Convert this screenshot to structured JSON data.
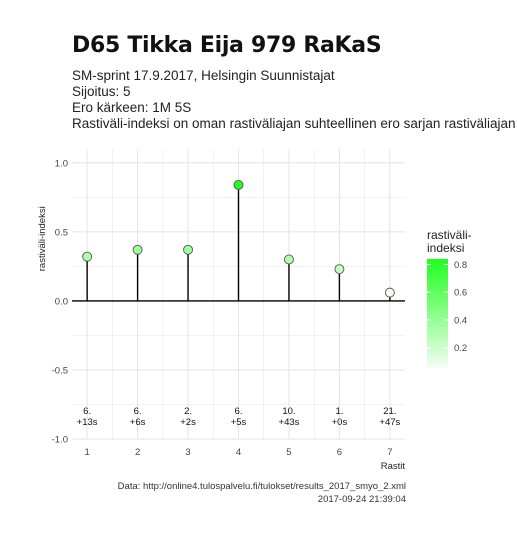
{
  "header": {
    "title": "D65 Tikka Eija 979 RaKaS",
    "subtitle_lines": [
      "SM-sprint 17.9.2017, Helsingin Suunnistajat",
      "Sijoitus: 5",
      "Ero kärkeen: 1M 5S",
      "Rastiväli-indeksi on oman rastiväliajan suhteellinen ero sarjan rastiväliajan kes"
    ]
  },
  "caption": {
    "line1": "Data: http://online4.tulospalvelu.fi/tulokset/results_2017_smyo_2.xml",
    "line2": "2017-09-24 21:39:04"
  },
  "chart_data": {
    "type": "lollipop",
    "xlabel": "Rastit",
    "ylabel": "rastiväli-indeksi",
    "x": [
      1,
      2,
      3,
      4,
      5,
      6,
      7
    ],
    "values": [
      0.32,
      0.37,
      0.37,
      0.84,
      0.3,
      0.23,
      0.06
    ],
    "ylim": [
      -1.0,
      1.1
    ],
    "xlim": [
      0.7,
      7.3
    ],
    "yticks": [
      -1.0,
      -0.5,
      0.0,
      0.5,
      1.0
    ],
    "ytick_labels": [
      "-1.0",
      "-0.5",
      "0.0",
      "0.5",
      "1.0"
    ],
    "xticks": [
      1,
      2,
      3,
      4,
      5,
      6,
      7
    ],
    "point_labels": [
      {
        "place": "6.",
        "diff": "+13s"
      },
      {
        "place": "6.",
        "diff": "+6s"
      },
      {
        "place": "2.",
        "diff": "+2s"
      },
      {
        "place": "6.",
        "diff": "+5s"
      },
      {
        "place": "10.",
        "diff": "+43s"
      },
      {
        "place": "1.",
        "diff": "+0s"
      },
      {
        "place": "21.",
        "diff": "+47s"
      }
    ],
    "legend": {
      "title": "rastiväli-indeksi",
      "position": "right",
      "ticks": [
        0.8,
        0.6,
        0.4,
        0.2
      ],
      "tick_labels": [
        "0.8",
        "0.6",
        "0.4",
        "0.2"
      ],
      "range": [
        0.06,
        0.84
      ],
      "color_low": "#f2fdf0",
      "color_high": "#1fff1f"
    },
    "grid": true,
    "colors": {
      "background": "#ffffff",
      "grid": "#e4e4e4",
      "baseline": "#000000",
      "stem": "#000000",
      "point_stroke": "#555555"
    }
  }
}
